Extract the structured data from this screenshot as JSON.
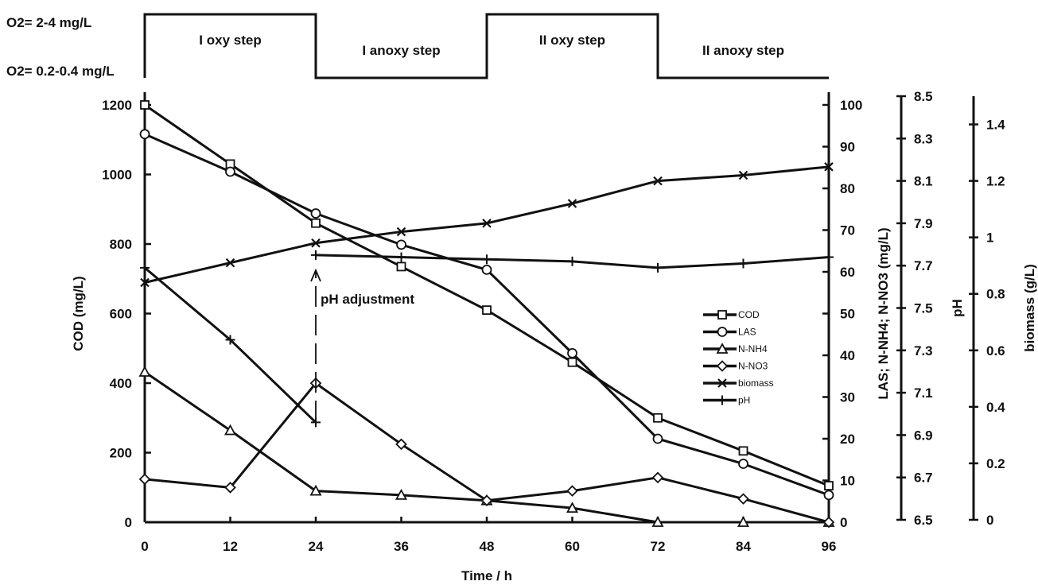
{
  "chart_data": {
    "type": "line",
    "xlabel": "Time / h",
    "x_ticks": [
      0,
      12,
      24,
      36,
      48,
      60,
      72,
      84,
      96
    ],
    "x_tick_labels": [
      "0",
      "12",
      "24",
      "36",
      "48",
      "60",
      "72",
      "84",
      "96"
    ],
    "xlim": [
      0,
      96
    ],
    "axes": {
      "cod": {
        "label": "COD (mg/L)",
        "range": [
          0,
          1200
        ],
        "ticks": [
          0,
          200,
          400,
          600,
          800,
          1000,
          1200
        ]
      },
      "las": {
        "label": "LAS; N-NH4; N-NO3 (mg/L)",
        "range": [
          0,
          100
        ],
        "ticks": [
          0,
          10,
          20,
          30,
          40,
          50,
          60,
          70,
          80,
          90,
          100
        ]
      },
      "ph": {
        "label": "pH",
        "range": [
          6.5,
          8.5
        ],
        "ticks": [
          6.5,
          6.7,
          6.9,
          7.1,
          7.3,
          7.5,
          7.7,
          7.9,
          8.1,
          8.3,
          8.5
        ]
      },
      "biomass": {
        "label": "biomass (g/L)",
        "range": [
          0,
          1.5
        ],
        "ticks": [
          0,
          0.2,
          0.4,
          0.6,
          0.8,
          1,
          1.2,
          1.4
        ]
      }
    },
    "oxygen_levels": {
      "high": "O2= 2-4 mg/L",
      "low": "O2= 0.2-0.4 mg/L"
    },
    "steps": [
      {
        "label": "I oxy step",
        "level": "high",
        "x": [
          0,
          24
        ]
      },
      {
        "label": "I anoxy step",
        "level": "low",
        "x": [
          24,
          48
        ]
      },
      {
        "label": "II oxy step",
        "level": "high",
        "x": [
          48,
          72
        ]
      },
      {
        "label": "II anoxy step",
        "level": "low",
        "x": [
          72,
          96
        ]
      }
    ],
    "series": [
      {
        "name": "COD",
        "axis": "cod",
        "marker": "square",
        "points": [
          [
            0,
            1200
          ],
          [
            12,
            1030
          ],
          [
            24,
            860
          ],
          [
            36,
            735
          ],
          [
            48,
            610
          ],
          [
            60,
            460
          ],
          [
            72,
            300
          ],
          [
            84,
            205
          ],
          [
            96,
            105
          ]
        ]
      },
      {
        "name": "LAS",
        "axis": "las",
        "marker": "circle",
        "points": [
          [
            0,
            93
          ],
          [
            12,
            84
          ],
          [
            24,
            74
          ],
          [
            36,
            66.5
          ],
          [
            48,
            60.5
          ],
          [
            60,
            40.5
          ],
          [
            72,
            20
          ],
          [
            84,
            14
          ],
          [
            96,
            6.5
          ]
        ]
      },
      {
        "name": "N-NH4",
        "axis": "las",
        "marker": "triangle",
        "points": [
          [
            0,
            36
          ],
          [
            12,
            22
          ],
          [
            24,
            7.5
          ],
          [
            36,
            6.5
          ],
          [
            48,
            5.2
          ],
          [
            60,
            3.4
          ],
          [
            72,
            0
          ],
          [
            84,
            0
          ],
          [
            96,
            0
          ]
        ]
      },
      {
        "name": "N-NO3",
        "axis": "las",
        "marker": "diamond",
        "points": [
          [
            0,
            10.3
          ],
          [
            12,
            8.3
          ],
          [
            24,
            33.3
          ],
          [
            36,
            18.7
          ],
          [
            48,
            5.2
          ],
          [
            60,
            7.5
          ],
          [
            72,
            10.7
          ],
          [
            84,
            5.6
          ],
          [
            96,
            0
          ]
        ]
      },
      {
        "name": "biomass",
        "axis": "biomass",
        "marker": "x",
        "points": [
          [
            0,
            0.84
          ],
          [
            12,
            0.91
          ],
          [
            24,
            0.98
          ],
          [
            36,
            1.02
          ],
          [
            48,
            1.05
          ],
          [
            60,
            1.12
          ],
          [
            72,
            1.2
          ],
          [
            84,
            1.22
          ],
          [
            96,
            1.25
          ]
        ]
      },
      {
        "name": "pH",
        "axis": "ph",
        "marker": "plus",
        "segments": [
          [
            [
              0,
              7.69
            ],
            [
              12,
              7.35
            ],
            [
              24,
              6.96
            ]
          ],
          [
            [
              24,
              7.75
            ],
            [
              36,
              7.74
            ],
            [
              48,
              7.73
            ],
            [
              60,
              7.72
            ],
            [
              72,
              7.69
            ],
            [
              84,
              7.71
            ],
            [
              96,
              7.74
            ]
          ]
        ]
      }
    ],
    "legend_position": "right-center",
    "annotation": {
      "text": "pH adjustment",
      "x": 24
    }
  }
}
